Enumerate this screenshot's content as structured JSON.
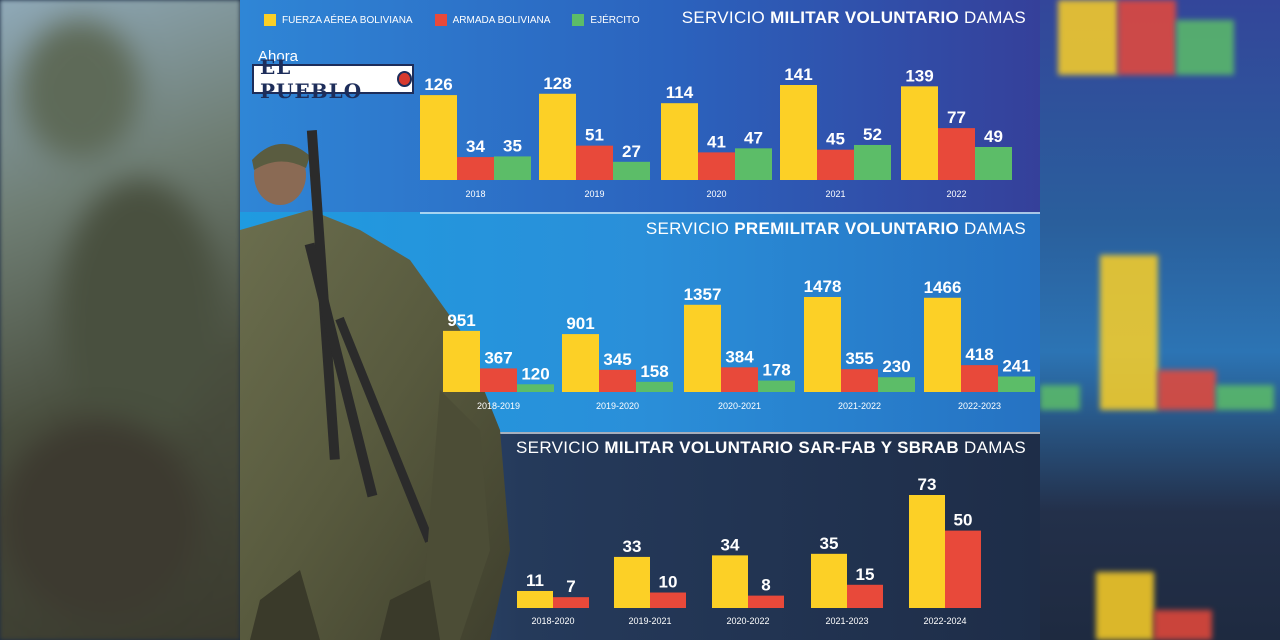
{
  "legend": [
    {
      "label": "FUERZA AÉREA BOLIVIANA",
      "color": "#fcd026"
    },
    {
      "label": "ARMADA BOLIVIANA",
      "color": "#e8493a"
    },
    {
      "label": "EJÉRCITO",
      "color": "#5cbd68"
    }
  ],
  "logo": {
    "top": "Ahora",
    "name": "EL PUEBLO"
  },
  "sections": [
    {
      "title_pre": "SERVICIO ",
      "title_bold": "MILITAR VOLUNTARIO",
      "title_post": " DAMAS"
    },
    {
      "title_pre": "SERVICIO ",
      "title_bold": "PREMILITAR VOLUNTARIO",
      "title_post": " DAMAS"
    },
    {
      "title_pre": "SERVICIO ",
      "title_bold": "MILITAR VOLUNTARIO SAR-FAB Y SBRAB",
      "title_post": " DAMAS"
    }
  ],
  "chart_data": [
    {
      "type": "bar",
      "title": "SERVICIO MILITAR VOLUNTARIO DAMAS",
      "categories": [
        "2018",
        "2019",
        "2020",
        "2021",
        "2022"
      ],
      "series": [
        {
          "name": "FUERZA AÉREA BOLIVIANA",
          "color": "#fcd026",
          "values": [
            126,
            128,
            114,
            141,
            139
          ]
        },
        {
          "name": "ARMADA BOLIVIANA",
          "color": "#e8493a",
          "values": [
            34,
            51,
            41,
            45,
            77
          ]
        },
        {
          "name": "EJÉRCITO",
          "color": "#5cbd68",
          "values": [
            35,
            27,
            47,
            52,
            49
          ]
        }
      ]
    },
    {
      "type": "bar",
      "title": "SERVICIO PREMILITAR VOLUNTARIO DAMAS",
      "categories": [
        "2018-2019",
        "2019-2020",
        "2020-2021",
        "2021-2022",
        "2022-2023"
      ],
      "series": [
        {
          "name": "FUERZA AÉREA BOLIVIANA",
          "color": "#fcd026",
          "values": [
            951,
            901,
            1357,
            1478,
            1466
          ]
        },
        {
          "name": "ARMADA BOLIVIANA",
          "color": "#e8493a",
          "values": [
            367,
            345,
            384,
            355,
            418
          ]
        },
        {
          "name": "EJÉRCITO",
          "color": "#5cbd68",
          "values": [
            120,
            158,
            178,
            230,
            241
          ]
        }
      ]
    },
    {
      "type": "bar",
      "title": "SERVICIO MILITAR VOLUNTARIO SAR-FAB Y SBRAB DAMAS",
      "categories": [
        "2018-2020",
        "2019-2021",
        "2020-2022",
        "2021-2023",
        "2022-2024"
      ],
      "series": [
        {
          "name": "FUERZA AÉREA BOLIVIANA",
          "color": "#fcd026",
          "values": [
            11,
            33,
            34,
            35,
            73
          ]
        },
        {
          "name": "ARMADA BOLIVIANA",
          "color": "#e8493a",
          "values": [
            7,
            10,
            8,
            15,
            50
          ]
        }
      ]
    }
  ]
}
